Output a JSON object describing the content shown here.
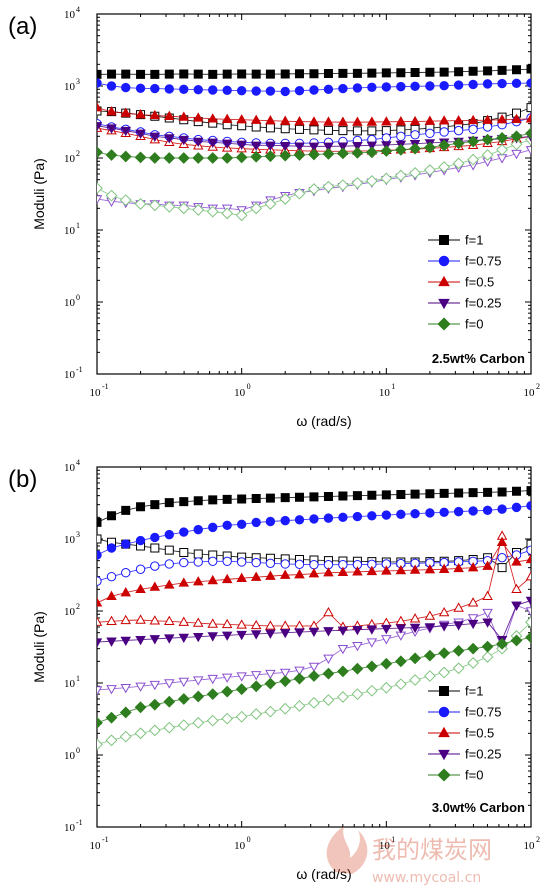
{
  "colors": {
    "f=1": "#000000",
    "f=0.75": "#1a1aff",
    "f=0.5": "#cc0000",
    "f=0.25": "#4b0082",
    "f=0": "#2e7d1e",
    "open_f=0.25": "#8a4fd0",
    "open_f=0": "#7fc47f"
  },
  "watermark": {
    "text": "我的煤炭网",
    "url": "www.mycoal.cn"
  },
  "chart_data": [
    {
      "type": "scatter",
      "panel_label": "(a)",
      "annotation": "2.5wt% Carbon",
      "xlabel": "ω (rad/s)",
      "ylabel": "Moduli (Pa)",
      "xscale": "log",
      "yscale": "log",
      "xlim": [
        0.1,
        100
      ],
      "ylim": [
        0.1,
        10000
      ],
      "x_ticks": [
        "10",
        "10",
        "10",
        "10"
      ],
      "x_tick_exps": [
        "-1",
        "0",
        "1",
        "2"
      ],
      "y_ticks": [
        "10",
        "10",
        "10",
        "10",
        "10",
        "10"
      ],
      "y_tick_exps": [
        "-1",
        "0",
        "1",
        "2",
        "3",
        "4"
      ],
      "legend": [
        "f=1",
        "f=0.75",
        "f=0.5",
        "f=0.25",
        "f=0"
      ],
      "legend_position": "right-middle",
      "x": [
        0.1,
        0.126,
        0.158,
        0.2,
        0.251,
        0.316,
        0.398,
        0.501,
        0.631,
        0.794,
        1.0,
        1.26,
        1.58,
        2.0,
        2.51,
        3.16,
        3.98,
        5.01,
        6.31,
        7.94,
        10.0,
        12.6,
        15.8,
        20.0,
        25.1,
        31.6,
        39.8,
        50.1,
        63.1,
        79.4,
        100
      ],
      "series": [
        {
          "name": "f=1",
          "marker": "square",
          "fill": "filled",
          "values": [
            1450,
            1460,
            1460,
            1450,
            1450,
            1460,
            1470,
            1460,
            1450,
            1460,
            1470,
            1460,
            1460,
            1470,
            1480,
            1480,
            1490,
            1500,
            1500,
            1510,
            1520,
            1530,
            1540,
            1550,
            1560,
            1580,
            1600,
            1620,
            1650,
            1680,
            1720
          ]
        },
        {
          "name": "f=0.75",
          "marker": "circle",
          "fill": "filled",
          "values": [
            1100,
            1000,
            950,
            930,
            920,
            910,
            900,
            890,
            880,
            870,
            860,
            850,
            850,
            840,
            860,
            880,
            900,
            920,
            940,
            960,
            970,
            980,
            990,
            1000,
            1010,
            1030,
            1050,
            1070,
            1080,
            1090,
            1100
          ]
        },
        {
          "name": "f=0.5",
          "marker": "triangle-up",
          "fill": "filled",
          "values": [
            500,
            440,
            420,
            400,
            390,
            380,
            370,
            360,
            350,
            345,
            340,
            335,
            330,
            325,
            320,
            318,
            316,
            315,
            315,
            316,
            318,
            320,
            322,
            325,
            328,
            330,
            332,
            335,
            340,
            345,
            350
          ]
        },
        {
          "name": "f=0.25",
          "marker": "triangle-down",
          "fill": "filled",
          "values": [
            280,
            260,
            240,
            220,
            200,
            190,
            180,
            170,
            165,
            160,
            155,
            150,
            150,
            148,
            146,
            145,
            145,
            146,
            148,
            150,
            152,
            155,
            158,
            162,
            166,
            170,
            175,
            180,
            185,
            190,
            200
          ]
        },
        {
          "name": "f=0",
          "marker": "diamond",
          "fill": "filled",
          "values": [
            120,
            110,
            105,
            102,
            100,
            100,
            100,
            100,
            100,
            100,
            102,
            104,
            106,
            108,
            110,
            112,
            114,
            116,
            118,
            120,
            125,
            130,
            135,
            140,
            150,
            160,
            170,
            180,
            190,
            200,
            220
          ]
        },
        {
          "name": "f=1 (open)",
          "marker": "square",
          "fill": "open",
          "color_key": "f=1",
          "values": [
            450,
            440,
            420,
            400,
            380,
            360,
            340,
            320,
            305,
            290,
            280,
            270,
            262,
            255,
            250,
            246,
            242,
            240,
            238,
            238,
            240,
            245,
            250,
            260,
            270,
            285,
            300,
            330,
            370,
            420,
            500
          ]
        },
        {
          "name": "f=0.75 (open)",
          "marker": "circle",
          "fill": "open",
          "color_key": "f=0.75",
          "values": [
            300,
            270,
            250,
            230,
            210,
            200,
            190,
            180,
            175,
            170,
            165,
            162,
            160,
            160,
            160,
            162,
            165,
            170,
            175,
            180,
            190,
            200,
            210,
            220,
            230,
            240,
            250,
            270,
            290,
            320,
            360
          ]
        },
        {
          "name": "f=0.5 (open)",
          "marker": "triangle-up",
          "fill": "open",
          "color_key": "f=0.5",
          "values": [
            260,
            240,
            220,
            200,
            180,
            165,
            155,
            148,
            142,
            138,
            135,
            132,
            130,
            128,
            126,
            125,
            124,
            124,
            125,
            126,
            128,
            130,
            133,
            136,
            140,
            145,
            150,
            160,
            170,
            185,
            200
          ]
        },
        {
          "name": "f=0.25 (open)",
          "marker": "triangle-down",
          "fill": "open",
          "color_key": "open_f=0.25",
          "values": [
            27,
            25,
            24,
            23,
            23,
            22,
            22,
            21,
            20,
            20,
            19,
            22,
            26,
            30,
            33,
            35,
            38,
            40,
            43,
            46,
            50,
            54,
            58,
            63,
            68,
            74,
            80,
            90,
            100,
            115,
            130
          ]
        },
        {
          "name": "f=0 (open)",
          "marker": "diamond",
          "fill": "open",
          "color_key": "open_f=0",
          "values": [
            38,
            30,
            26,
            23,
            22,
            21,
            20,
            19,
            18,
            17,
            16,
            20,
            23,
            27,
            32,
            37,
            40,
            42,
            45,
            48,
            52,
            57,
            62,
            68,
            75,
            84,
            95,
            110,
            130,
            155,
            180
          ]
        }
      ]
    },
    {
      "type": "scatter",
      "panel_label": "(b)",
      "annotation": "3.0wt% Carbon",
      "xlabel": "ω (rad/s)",
      "ylabel": "Moduli (Pa)",
      "xscale": "log",
      "yscale": "log",
      "xlim": [
        0.1,
        100
      ],
      "ylim": [
        0.1,
        10000
      ],
      "x_ticks": [
        "10",
        "10",
        "10",
        "10"
      ],
      "x_tick_exps": [
        "-1",
        "0",
        "1",
        "2"
      ],
      "y_ticks": [
        "10",
        "10",
        "10",
        "10",
        "10",
        "10"
      ],
      "y_tick_exps": [
        "-1",
        "0",
        "1",
        "2",
        "3",
        "4"
      ],
      "legend": [
        "f=1",
        "f=0.75",
        "f=0.5",
        "f=0.25",
        "f=0"
      ],
      "legend_position": "right-middle",
      "x": [
        0.1,
        0.126,
        0.158,
        0.2,
        0.251,
        0.316,
        0.398,
        0.501,
        0.631,
        0.794,
        1.0,
        1.26,
        1.58,
        2.0,
        2.51,
        3.16,
        3.98,
        5.01,
        6.31,
        7.94,
        10.0,
        12.6,
        15.8,
        20.0,
        25.1,
        31.6,
        39.8,
        50.1,
        63.1,
        79.4,
        100
      ],
      "series": [
        {
          "name": "f=1",
          "marker": "square",
          "fill": "filled",
          "values": [
            1700,
            2100,
            2500,
            2800,
            3000,
            3200,
            3300,
            3400,
            3500,
            3550,
            3600,
            3650,
            3700,
            3750,
            3800,
            3850,
            3900,
            3950,
            4000,
            4050,
            4100,
            4150,
            4200,
            4250,
            4300,
            4350,
            4400,
            4450,
            4500,
            4600,
            4700
          ]
        },
        {
          "name": "f=0.75",
          "marker": "circle",
          "fill": "filled",
          "values": [
            600,
            750,
            850,
            950,
            1050,
            1150,
            1250,
            1350,
            1450,
            1550,
            1600,
            1700,
            1750,
            1800,
            1850,
            1900,
            1950,
            2000,
            2050,
            2100,
            2150,
            2200,
            2250,
            2300,
            2350,
            2400,
            2450,
            2500,
            2600,
            2750,
            2900
          ]
        },
        {
          "name": "f=0.5",
          "marker": "triangle-up",
          "fill": "filled",
          "values": [
            130,
            160,
            180,
            200,
            215,
            230,
            245,
            255,
            265,
            275,
            285,
            295,
            305,
            315,
            320,
            330,
            340,
            345,
            350,
            355,
            360,
            365,
            370,
            375,
            380,
            390,
            400,
            420,
            900,
            480,
            520
          ]
        },
        {
          "name": "f=0.25",
          "marker": "triangle-down",
          "fill": "filled",
          "values": [
            37,
            38,
            39,
            40,
            41,
            42,
            43,
            44,
            45,
            46,
            47,
            48,
            49,
            50,
            51,
            52,
            53,
            54,
            55,
            56,
            57,
            58,
            59,
            60,
            62,
            64,
            67,
            70,
            40,
            120,
            140
          ]
        },
        {
          "name": "f=0",
          "marker": "diamond",
          "fill": "filled",
          "values": [
            2.8,
            3.3,
            3.9,
            4.6,
            5.0,
            5.5,
            6.0,
            6.5,
            7.0,
            7.6,
            8.2,
            9.0,
            9.8,
            10.6,
            11.5,
            12.5,
            13.5,
            14.5,
            15.8,
            17.0,
            18.5,
            20,
            22,
            24,
            26,
            28,
            30,
            32,
            35,
            39,
            43
          ]
        },
        {
          "name": "f=1 (open)",
          "marker": "square",
          "fill": "open",
          "color_key": "f=1",
          "values": [
            1000,
            900,
            850,
            800,
            750,
            700,
            650,
            620,
            600,
            580,
            560,
            550,
            540,
            530,
            520,
            510,
            500,
            495,
            490,
            485,
            480,
            480,
            480,
            485,
            490,
            500,
            520,
            550,
            400,
            650,
            850
          ]
        },
        {
          "name": "f=0.75 (open)",
          "marker": "circle",
          "fill": "open",
          "color_key": "f=0.75",
          "values": [
            260,
            300,
            340,
            380,
            420,
            450,
            470,
            480,
            490,
            490,
            480,
            470,
            460,
            450,
            445,
            440,
            440,
            440,
            440,
            445,
            450,
            455,
            460,
            465,
            470,
            480,
            490,
            500,
            550,
            600,
            700
          ]
        },
        {
          "name": "f=0.5 (open)",
          "marker": "triangle-up",
          "fill": "open",
          "color_key": "f=0.5",
          "values": [
            70,
            72,
            74,
            75,
            73,
            72,
            70,
            68,
            66,
            65,
            64,
            63,
            62,
            62,
            62,
            62,
            95,
            60,
            62,
            65,
            68,
            72,
            78,
            85,
            95,
            110,
            130,
            160,
            1100,
            200,
            300
          ]
        },
        {
          "name": "f=0.25 (open)",
          "marker": "triangle-down",
          "fill": "open",
          "color_key": "open_f=0.25",
          "values": [
            8,
            8.3,
            8.6,
            9,
            9.5,
            10,
            10.5,
            11,
            11.5,
            12,
            12.5,
            13,
            13.5,
            14,
            15,
            17,
            22,
            30,
            33,
            37,
            41,
            46,
            52,
            58,
            65,
            70,
            80,
            95,
            30,
            120,
            100
          ]
        },
        {
          "name": "f=0 (open)",
          "marker": "diamond",
          "fill": "open",
          "color_key": "open_f=0",
          "values": [
            1.4,
            1.6,
            1.8,
            2.0,
            2.2,
            2.4,
            2.6,
            2.8,
            3.0,
            3.2,
            3.4,
            3.7,
            4.0,
            4.4,
            4.8,
            5.3,
            5.8,
            6.4,
            7.0,
            7.8,
            8.6,
            9.6,
            11,
            12.5,
            14,
            16,
            19,
            23,
            30,
            45,
            70
          ]
        }
      ]
    }
  ]
}
